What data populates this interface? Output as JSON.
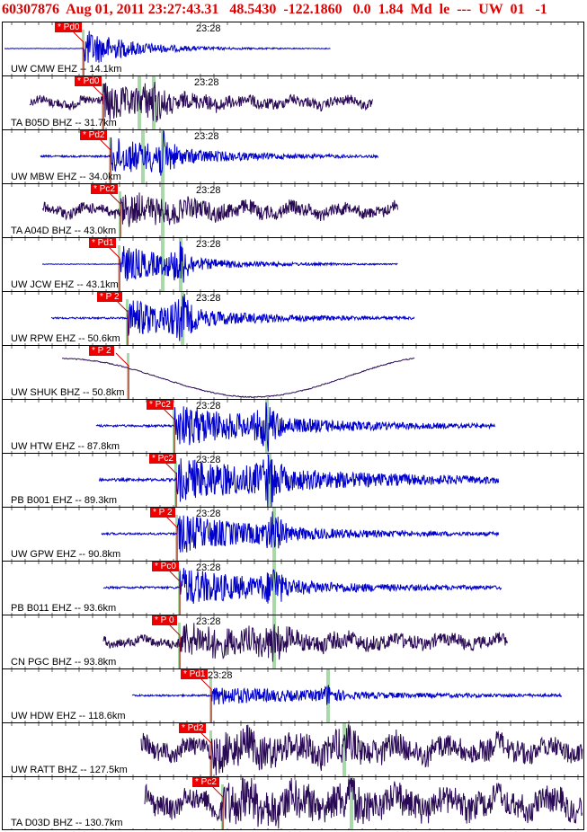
{
  "header": {
    "text": "60307876  Aug 01, 2011 23:27:43.31   48.5430  -122.1860   0.0  1.84  Md  le  ---  UW  01   -1"
  },
  "colors": {
    "header": "#e00000",
    "ehz_trace": "#0000cc",
    "bhz_trace": "#2a0a55",
    "pick": "#ee0000",
    "marker": "#a9d9a9"
  },
  "panels": [
    {
      "label": "UW CMW EHZ -- 14.1km",
      "time": "23:28",
      "pick": "* Pd0",
      "trace": "ehz"
    },
    {
      "label": "TA B05D BHZ -- 31.7km",
      "time": "23:28",
      "pick": "* Pd0",
      "trace": "bhz"
    },
    {
      "label": "UW MBW EHZ -- 34.0km",
      "time": "23:28",
      "pick": "* Pd2",
      "trace": "ehz"
    },
    {
      "label": "TA A04D BHZ -- 43.0km",
      "time": "23:28",
      "pick": "* Pc2",
      "trace": "bhz"
    },
    {
      "label": "UW JCW EHZ -- 43.1km",
      "time": "23:28",
      "pick": "* Pd1",
      "trace": "ehz"
    },
    {
      "label": "UW RPW EHZ -- 50.6km",
      "time": "23:28",
      "pick": "* P 2",
      "trace": "ehz"
    },
    {
      "label": "UW SHUK BHZ -- 50.8km",
      "time": "",
      "pick": "* P 2",
      "trace": "bhz"
    },
    {
      "label": "UW HTW EHZ -- 87.8km",
      "time": "23:28",
      "pick": "* Pc2",
      "trace": "ehz"
    },
    {
      "label": "PB B001 EHZ -- 89.3km",
      "time": "23:28",
      "pick": "* Pc2",
      "trace": "ehz"
    },
    {
      "label": "UW GPW EHZ -- 90.8km",
      "time": "23:28",
      "pick": "* P 2",
      "trace": "ehz"
    },
    {
      "label": "PB B011 EHZ -- 93.6km",
      "time": "23:28",
      "pick": "* Pc0",
      "trace": "ehz"
    },
    {
      "label": "CN PGC BHZ -- 93.8km",
      "time": "23:28",
      "pick": "* P 0",
      "trace": "bhz"
    },
    {
      "label": "UW HDW EHZ -- 118.6km",
      "time": "23:28",
      "pick": "* Pd1",
      "trace": "ehz"
    },
    {
      "label": "UW RATT BHZ -- 127.5km",
      "time": "",
      "pick": "* Pd2",
      "trace": "bhz"
    },
    {
      "label": "TA D03D BHZ -- 130.7km",
      "time": "",
      "pick": "* Pc2",
      "trace": "bhz"
    }
  ]
}
